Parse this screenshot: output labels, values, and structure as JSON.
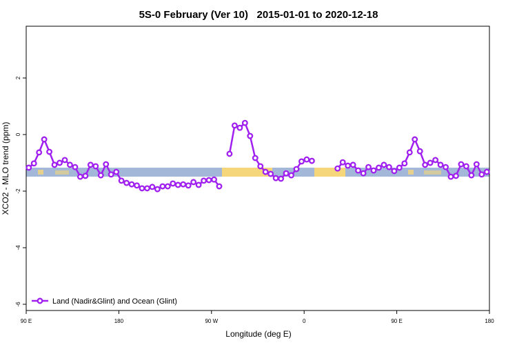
{
  "chart_data": {
    "type": "line",
    "title": "5S-0 February (Ver 10)   2015-01-01 to 2020-12-18",
    "x_label": "Longitude (deg E)",
    "y_label": "XCO2 - MLO trend (ppm)",
    "xlim": [
      90,
      540
    ],
    "xticks": [
      {
        "value": 90,
        "label": "90 E"
      },
      180,
      {
        "value": 270,
        "label": "90 W"
      },
      {
        "value": 360,
        "label": "0"
      },
      {
        "value": 450,
        "label": "90 E"
      },
      {
        "value": 540,
        "label": "180"
      }
    ],
    "ylim": [
      -6.22,
      3.83
    ],
    "yticks": [
      -6,
      -4,
      -2,
      0,
      2
    ],
    "legend": "bottom-left",
    "x": [
      92.5,
      97.5,
      102.5,
      107.5,
      112.5,
      117.5,
      122.5,
      127.5,
      132.5,
      137.5,
      142.5,
      147.5,
      152.5,
      157.5,
      162.5,
      167.5,
      172.5,
      177.5,
      182.5,
      187.5,
      192.5,
      197.5,
      202.5,
      207.5,
      212.5,
      217.5,
      222.5,
      227.5,
      232.5,
      237.5,
      242.5,
      247.5,
      252.5,
      257.5,
      262.5,
      267.5,
      272.5,
      277.5,
      282.5,
      287.5,
      292.5,
      297.5,
      302.5,
      307.5,
      312.5,
      317.5,
      322.5,
      327.5,
      332.5,
      337.5,
      342.5,
      347.5,
      352.5,
      357.5,
      362.5,
      367.5,
      372.5,
      377.5,
      382.5,
      387.5,
      392.5,
      397.5,
      402.5,
      407.5,
      412.5,
      417.5,
      422.5,
      427.5,
      432.5,
      437.5,
      442.5,
      447.5,
      452.5,
      457.5,
      462.5,
      467.5,
      472.5,
      477.5,
      482.5,
      487.5,
      492.5,
      497.5,
      502.5,
      507.5,
      512.5,
      517.5,
      522.5,
      527.5,
      532.5,
      537.5
    ],
    "series": [
      {
        "name": "Land (Nadir&Glint) and Ocean (Glint)",
        "color": "#a020f0",
        "values": [
          -1.17,
          -1.02,
          -0.63,
          -0.17,
          -0.61,
          -1.07,
          -1.0,
          -0.9,
          -1.07,
          -1.15,
          -1.49,
          -1.46,
          -1.07,
          -1.12,
          -1.44,
          -1.05,
          -1.41,
          -1.32,
          -1.63,
          -1.71,
          -1.76,
          -1.8,
          -1.9,
          -1.9,
          -1.85,
          -1.93,
          -1.83,
          -1.83,
          -1.73,
          -1.78,
          -1.76,
          -1.8,
          -1.68,
          -1.78,
          -1.63,
          -1.61,
          -1.59,
          -1.83,
          null,
          -0.68,
          0.32,
          0.24,
          0.41,
          -0.05,
          -0.83,
          -1.12,
          -1.32,
          -1.39,
          -1.54,
          -1.56,
          -1.37,
          -1.44,
          -1.22,
          -0.95,
          -0.88,
          -0.93,
          null,
          null,
          null,
          null,
          -1.2,
          -0.98,
          -1.1,
          -1.07,
          -1.27,
          -1.37,
          -1.15,
          -1.27,
          -1.17,
          -1.07,
          -1.15,
          -1.29,
          -1.17,
          -1.02,
          -0.63,
          -0.17,
          -0.59,
          -1.07,
          -1.0,
          -0.9,
          -1.07,
          -1.15,
          -1.49,
          -1.46,
          -1.05,
          -1.12,
          -1.44,
          -1.05,
          -1.41,
          -1.32
        ]
      }
    ]
  }
}
